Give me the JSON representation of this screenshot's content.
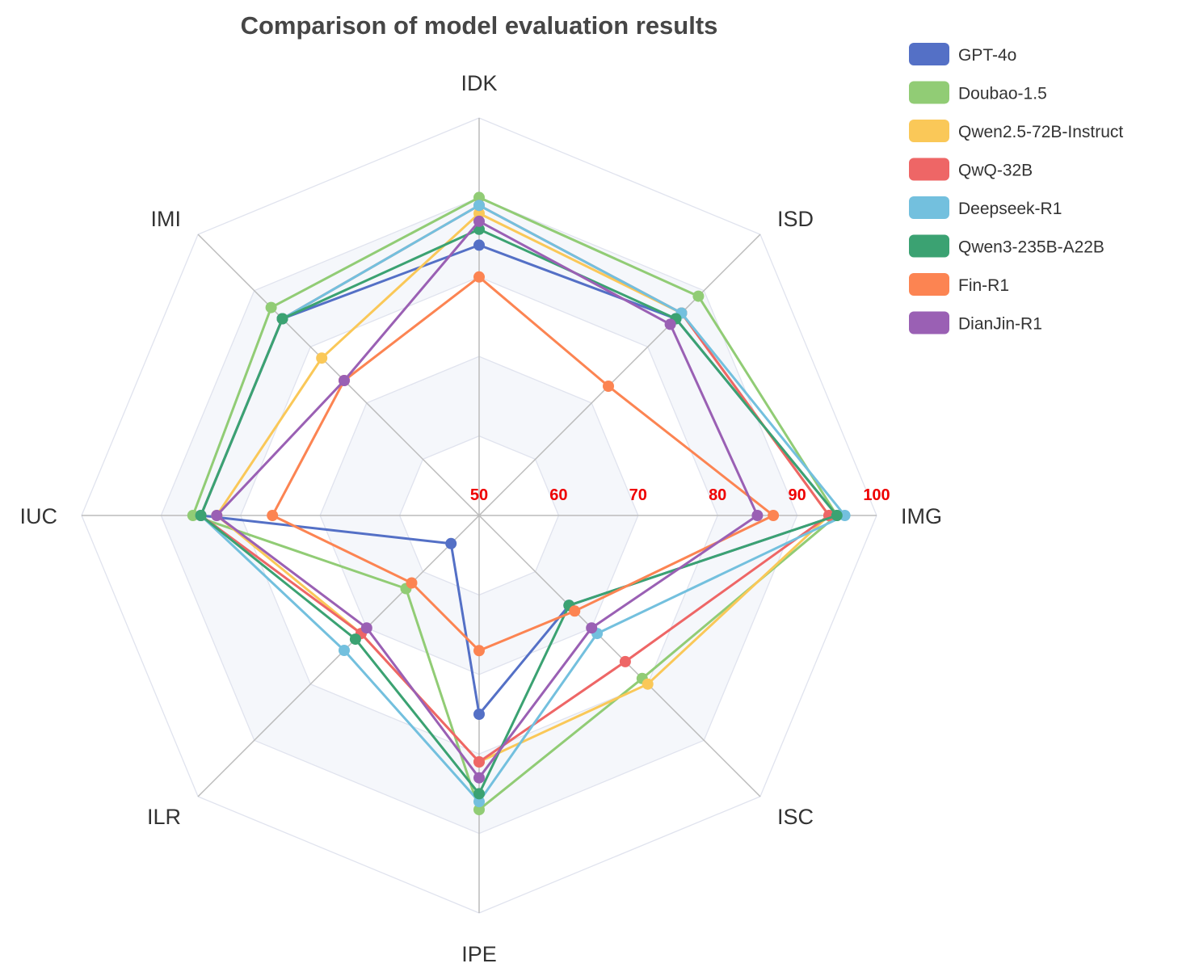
{
  "chart_data": {
    "type": "radar",
    "title": "Comparison of model evaluation results",
    "axes": [
      "IDK",
      "ISD",
      "IMG",
      "ISC",
      "IPE",
      "ILR",
      "IUC",
      "IMI"
    ],
    "ticks": [
      50,
      60,
      70,
      80,
      90,
      100
    ],
    "range": [
      50,
      100
    ],
    "legend_position": "top-right",
    "grid": true,
    "series": [
      {
        "name": "GPT-4o",
        "color": "#5470c6",
        "values": [
          84,
          85,
          95,
          66,
          75,
          55,
          85,
          85
        ]
      },
      {
        "name": "Doubao-1.5",
        "color": "#91cc75",
        "values": [
          90,
          89,
          95,
          79,
          87,
          63,
          86,
          87
        ]
      },
      {
        "name": "Qwen2.5-72B-Instruct",
        "color": "#fac858",
        "values": [
          88,
          86,
          94,
          80,
          81,
          71,
          83,
          78
        ]
      },
      {
        "name": "QwQ-32B",
        "color": "#ee6666",
        "values": [
          89,
          86,
          94,
          76,
          81,
          71,
          85,
          85
        ]
      },
      {
        "name": "Deepseek-R1",
        "color": "#73c0de",
        "values": [
          89,
          86,
          96,
          71,
          86,
          74,
          85,
          85
        ]
      },
      {
        "name": "Qwen3-235B-A22B",
        "color": "#3ba272",
        "values": [
          86,
          85,
          95,
          66,
          85,
          72,
          85,
          85
        ]
      },
      {
        "name": "Fin-R1",
        "color": "#fc8452",
        "values": [
          80,
          73,
          87,
          67,
          67,
          62,
          76,
          74
        ]
      },
      {
        "name": "DianJin-R1",
        "color": "#9a60b4",
        "values": [
          87,
          84,
          85,
          70,
          83,
          70,
          83,
          74
        ]
      }
    ]
  }
}
